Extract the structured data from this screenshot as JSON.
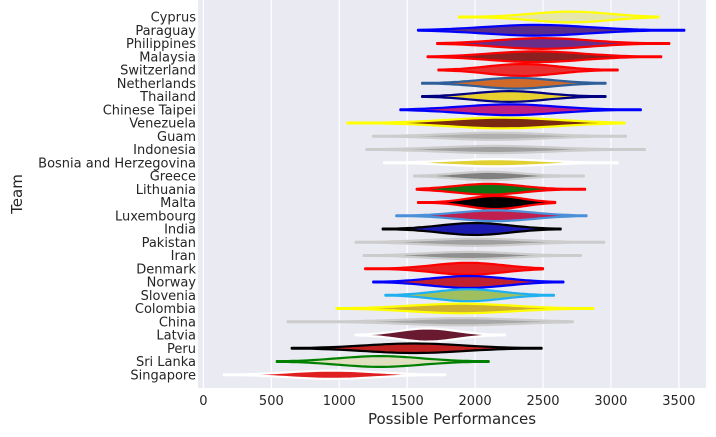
{
  "chart_data": {
    "type": "violin",
    "title": "",
    "xlabel": "Possible Performances",
    "ylabel": "Team",
    "xlim": [
      -40,
      3700
    ],
    "xticks": [
      0,
      500,
      1000,
      1500,
      2000,
      2500,
      3000,
      3500
    ],
    "grid": true,
    "background": "#eaeaf2",
    "series": [
      {
        "team": "Cyprus",
        "min": 1880,
        "max": 3350,
        "center": 2700,
        "width": 0.45,
        "color": "#ffff00",
        "fill": "#e6e6aa"
      },
      {
        "team": "Paraguay",
        "min": 1580,
        "max": 3540,
        "center": 2450,
        "width": 0.45,
        "color": "#0000ff",
        "fill": "#5a2d8a"
      },
      {
        "team": "Philippines",
        "min": 1720,
        "max": 3430,
        "center": 2500,
        "width": 0.45,
        "color": "#ff0000",
        "fill": "#6b2d8a"
      },
      {
        "team": "Malaysia",
        "min": 1650,
        "max": 3370,
        "center": 2450,
        "width": 0.45,
        "color": "#ff0000",
        "fill": "#8a2020"
      },
      {
        "team": "Switzerland",
        "min": 1730,
        "max": 3050,
        "center": 2350,
        "width": 0.5,
        "color": "#ff0000",
        "fill": "#e83030"
      },
      {
        "team": "Netherlands",
        "min": 1610,
        "max": 2960,
        "center": 2300,
        "width": 0.45,
        "color": "#2f5f9a",
        "fill": "#d06a2a"
      },
      {
        "team": "Thailand",
        "min": 1610,
        "max": 2960,
        "center": 2250,
        "width": 0.45,
        "color": "#000080",
        "fill": "#e8d030"
      },
      {
        "team": "Chinese Taipei",
        "min": 1450,
        "max": 3220,
        "center": 2250,
        "width": 0.45,
        "color": "#0000ff",
        "fill": "#c02080"
      },
      {
        "team": "Venezuela",
        "min": 1060,
        "max": 3100,
        "center": 2200,
        "width": 0.45,
        "color": "#ffff00",
        "fill": "#7a2a10"
      },
      {
        "team": "Guam",
        "min": 1250,
        "max": 3110,
        "center": 2150,
        "width": 0.3,
        "color": "#cccccc",
        "fill": "#b0b0b0"
      },
      {
        "team": "Indonesia",
        "min": 1200,
        "max": 3250,
        "center": 2150,
        "width": 0.3,
        "color": "#cccccc",
        "fill": "#a0a0a0"
      },
      {
        "team": "Bosnia and Herzegovina",
        "min": 1330,
        "max": 3050,
        "center": 2150,
        "width": 0.3,
        "color": "#ffffff",
        "fill": "#e0d030"
      },
      {
        "team": "Greece",
        "min": 1550,
        "max": 2800,
        "center": 2100,
        "width": 0.35,
        "color": "#cccccc",
        "fill": "#808080"
      },
      {
        "team": "Lithuania",
        "min": 1570,
        "max": 2810,
        "center": 2100,
        "width": 0.45,
        "color": "#ff0000",
        "fill": "#107010"
      },
      {
        "team": "Malta",
        "min": 1580,
        "max": 2590,
        "center": 2150,
        "width": 0.55,
        "color": "#ff0000",
        "fill": "#000000"
      },
      {
        "team": "Luxembourg",
        "min": 1420,
        "max": 2820,
        "center": 2150,
        "width": 0.45,
        "color": "#4a90d9",
        "fill": "#c02050"
      },
      {
        "team": "India",
        "min": 1320,
        "max": 2630,
        "center": 2000,
        "width": 0.5,
        "color": "#000000",
        "fill": "#1a1ab0"
      },
      {
        "team": "Pakistan",
        "min": 1120,
        "max": 2950,
        "center": 2000,
        "width": 0.3,
        "color": "#cccccc",
        "fill": "#a0a0a0"
      },
      {
        "team": "Iran",
        "min": 1180,
        "max": 2780,
        "center": 1950,
        "width": 0.3,
        "color": "#cccccc",
        "fill": "#909090"
      },
      {
        "team": "Denmark",
        "min": 1190,
        "max": 2500,
        "center": 1950,
        "width": 0.5,
        "color": "#ff0000",
        "fill": "#e82020"
      },
      {
        "team": "Norway",
        "min": 1250,
        "max": 2650,
        "center": 1950,
        "width": 0.5,
        "color": "#0000ff",
        "fill": "#c02030"
      },
      {
        "team": "Slovenia",
        "min": 1340,
        "max": 2580,
        "center": 1950,
        "width": 0.5,
        "color": "#20b0f0",
        "fill": "#a0c060"
      },
      {
        "team": "Colombia",
        "min": 980,
        "max": 2870,
        "center": 1900,
        "width": 0.4,
        "color": "#ffff00",
        "fill": "#d0b030"
      },
      {
        "team": "China",
        "min": 620,
        "max": 2720,
        "center": 1900,
        "width": 0.3,
        "color": "#cccccc",
        "fill": "#a8a8a8"
      },
      {
        "team": "Latvia",
        "min": 1120,
        "max": 2220,
        "center": 1650,
        "width": 0.55,
        "color": "#ffffff",
        "fill": "#6a1a30"
      },
      {
        "team": "Peru",
        "min": 650,
        "max": 2490,
        "center": 1550,
        "width": 0.4,
        "color": "#000000",
        "fill": "#c02020"
      },
      {
        "team": "Sri Lanka",
        "min": 540,
        "max": 2100,
        "center": 1300,
        "width": 0.45,
        "color": "#008000",
        "fill": "#e0e0c0"
      },
      {
        "team": "Singapore",
        "min": 150,
        "max": 1780,
        "center": 950,
        "width": 0.35,
        "color": "#ffffff",
        "fill": "#e02020"
      }
    ]
  }
}
